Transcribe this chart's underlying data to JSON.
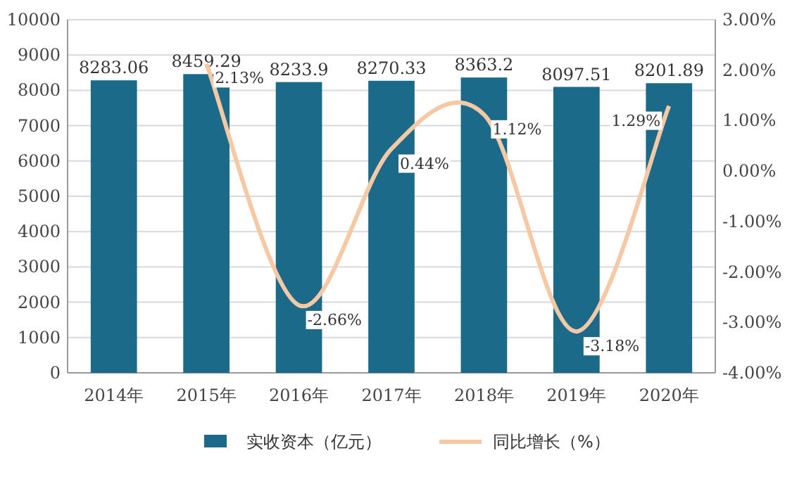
{
  "chart_data": {
    "type": "bar",
    "categories": [
      "2014年",
      "2015年",
      "2016年",
      "2017年",
      "2018年",
      "2019年",
      "2020年"
    ],
    "series": [
      {
        "name": "实收资本（亿元）",
        "color": "#1b6a8a",
        "values": [
          8283.06,
          8459.29,
          8233.9,
          8270.33,
          8363.2,
          8097.51,
          8201.89
        ]
      },
      {
        "name": "同比增长（%）",
        "type": "line",
        "axis": "y2",
        "color": "#f6c9a4",
        "values": [
          null,
          2.13,
          -2.66,
          0.44,
          1.12,
          -3.18,
          1.29
        ],
        "value_labels": [
          null,
          "2.13%",
          "-2.66%",
          "0.44%",
          "1.12%",
          "-3.18%",
          "1.29%"
        ]
      }
    ],
    "data_labels": true,
    "ylim": [
      0,
      10000
    ],
    "yticks": [
      0,
      1000,
      2000,
      3000,
      4000,
      5000,
      6000,
      7000,
      8000,
      9000,
      10000
    ],
    "y2lim": [
      -4,
      3
    ],
    "y2ticks": [
      {
        "value": -4,
        "label": "-4.00%"
      },
      {
        "value": -3,
        "label": "-3.00%"
      },
      {
        "value": -2,
        "label": "-2.00%"
      },
      {
        "value": -1,
        "label": "-1.00%"
      },
      {
        "value": 0,
        "label": "0.00%"
      },
      {
        "value": 1,
        "label": "1.00%"
      },
      {
        "value": 2,
        "label": "2.00%"
      },
      {
        "value": 3,
        "label": "3.00%"
      }
    ],
    "grid": "y",
    "legend": "bottom",
    "marker": "none",
    "line_style": "solid"
  }
}
